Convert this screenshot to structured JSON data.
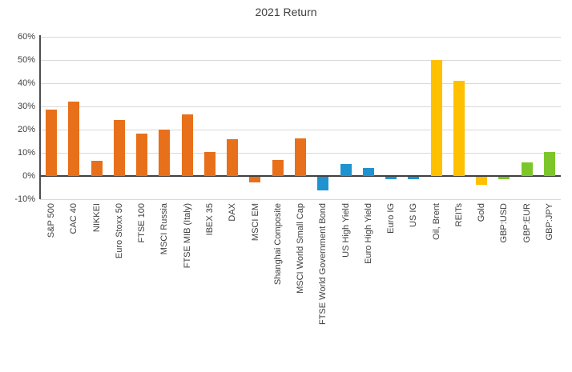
{
  "chart_data": {
    "type": "bar",
    "title": "2021 Return",
    "categories": [
      "S&P 500",
      "CAC 40",
      "NIKKEI",
      "Euro Stoxx 50",
      "FTSE 100",
      "MSCI Russia",
      "FTSE MIB (Italy)",
      "IBEX 35",
      "DAX",
      "MSCI EM",
      "Shanghai Composite",
      "MSCI World Small Cap",
      "FTSE World Government Bond",
      "US High Yield",
      "Euro High Yield",
      "Euro IG",
      "US IG",
      "Oil, Brent",
      "REITs",
      "Gold",
      "GBP:USD",
      "GBP:EUR",
      "GBP:JPY"
    ],
    "values": [
      28.7,
      31.9,
      6.5,
      24.1,
      18.4,
      20.0,
      26.5,
      10.5,
      15.8,
      -2.5,
      7.0,
      16.2,
      -6.0,
      5.3,
      3.4,
      -1.1,
      -1.0,
      50.0,
      41.0,
      -3.6,
      -1.0,
      6.0,
      10.2
    ],
    "bar_colors": [
      "#E8701A",
      "#E8701A",
      "#E8701A",
      "#E8701A",
      "#E8701A",
      "#E8701A",
      "#E8701A",
      "#E8701A",
      "#E8701A",
      "#E8701A",
      "#E8701A",
      "#E8701A",
      "#1F93D0",
      "#1F93D0",
      "#1F93D0",
      "#1F93D0",
      "#1F93D0",
      "#FFC000",
      "#FFC000",
      "#FFC000",
      "#7CC62B",
      "#7CC62B",
      "#7CC62B"
    ],
    "color_groups": {
      "equities": "#E8701A",
      "bonds": "#1F93D0",
      "commodities_reits": "#FFC000",
      "currencies": "#7CC62B"
    },
    "xlabel": "",
    "ylabel": "",
    "ylim": [
      -10,
      60
    ],
    "ytick_step": 10,
    "ytick_labels": [
      "60%",
      "50%",
      "40%",
      "30%",
      "20%",
      "10%",
      "0%",
      "-10%"
    ],
    "ytick_format": "percent",
    "grid": "horizontal",
    "legend": "none"
  },
  "colors": {
    "background": "#FFFFFF",
    "gridline": "#D9D9D9",
    "axis_line": "#404040",
    "text": "#404040"
  }
}
